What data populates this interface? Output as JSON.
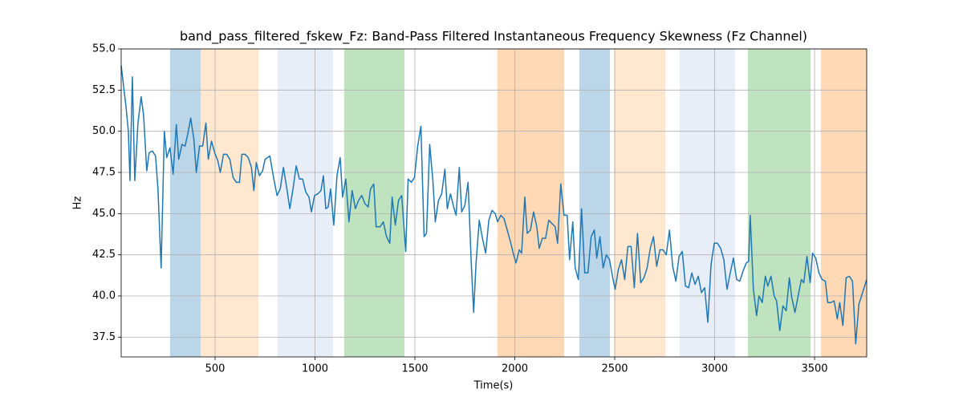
{
  "chart_data": {
    "type": "line",
    "title": "band_pass_filtered_fskew_Fz: Band-Pass Filtered Instantaneous Frequency Skewness (Fz Channel)",
    "xlabel": "Time(s)",
    "ylabel": "Hz",
    "color": "#1f77b4",
    "grid": true,
    "xlim": [
      30,
      3761
    ],
    "ylim": [
      36.3,
      55
    ],
    "xticks": [
      500,
      1000,
      1500,
      2000,
      2500,
      3000,
      3500
    ],
    "yticks": [
      37.5,
      {
        "value": 40,
        "label": "40.0"
      },
      42.5,
      {
        "value": 45,
        "label": "45.0"
      },
      47.5,
      {
        "value": 50,
        "label": "50.0"
      },
      52.5,
      {
        "value": 55,
        "label": "55.0"
      }
    ],
    "spans": [
      {
        "x0": 275,
        "x1": 428,
        "color": "#1f77b4",
        "opacity": 0.3
      },
      {
        "x0": 428,
        "x1": 717,
        "color": "#ffbb78",
        "opacity": 0.35
      },
      {
        "x0": 813,
        "x1": 1090,
        "color": "#aec7e8",
        "opacity": 0.3
      },
      {
        "x0": 1146,
        "x1": 1448,
        "color": "#2ca02c",
        "opacity": 0.3
      },
      {
        "x0": 1913,
        "x1": 2247,
        "color": "#ff7f0e",
        "opacity": 0.3
      },
      {
        "x0": 2323,
        "x1": 2476,
        "color": "#1f77b4",
        "opacity": 0.3
      },
      {
        "x0": 2496,
        "x1": 2753,
        "color": "#ffbb78",
        "opacity": 0.35
      },
      {
        "x0": 2825,
        "x1": 3102,
        "color": "#aec7e8",
        "opacity": 0.3
      },
      {
        "x0": 3166,
        "x1": 3480,
        "color": "#2ca02c",
        "opacity": 0.3
      },
      {
        "x0": 3532,
        "x1": 3761,
        "color": "#ff7f0e",
        "opacity": 0.3
      }
    ],
    "x": [
      30,
      54,
      66,
      74,
      86,
      98,
      114,
      130,
      142,
      158,
      170,
      186,
      202,
      214,
      230,
      246,
      258,
      274,
      290,
      306,
      318,
      334,
      350,
      366,
      378,
      394,
      406,
      422,
      438,
      454,
      466,
      482,
      498,
      514,
      526,
      542,
      558,
      574,
      590,
      606,
      622,
      634,
      650,
      666,
      682,
      694,
      706,
      722,
      738,
      750,
      774,
      794,
      810,
      826,
      842,
      858,
      874,
      890,
      906,
      922,
      938,
      954,
      970,
      982,
      998,
      1014,
      1030,
      1042,
      1054,
      1066,
      1078,
      1094,
      1110,
      1126,
      1138,
      1154,
      1170,
      1186,
      1202,
      1218,
      1234,
      1250,
      1266,
      1278,
      1294,
      1306,
      1326,
      1342,
      1358,
      1374,
      1386,
      1402,
      1418,
      1434,
      1454,
      1466,
      1482,
      1498,
      1514,
      1530,
      1546,
      1558,
      1574,
      1590,
      1602,
      1618,
      1634,
      1650,
      1662,
      1678,
      1694,
      1706,
      1722,
      1734,
      1750,
      1766,
      1782,
      1794,
      1806,
      1822,
      1838,
      1854,
      1870,
      1886,
      1902,
      1914,
      1930,
      1946,
      1962,
      1978,
      1994,
      2006,
      2022,
      2034,
      2050,
      2062,
      2078,
      2094,
      2110,
      2122,
      2138,
      2154,
      2170,
      2186,
      2202,
      2214,
      2230,
      2246,
      2262,
      2274,
      2290,
      2302,
      2318,
      2334,
      2350,
      2366,
      2382,
      2398,
      2410,
      2426,
      2442,
      2458,
      2474,
      2490,
      2502,
      2518,
      2534,
      2550,
      2566,
      2582,
      2598,
      2614,
      2630,
      2646,
      2662,
      2678,
      2694,
      2710,
      2726,
      2742,
      2758,
      2774,
      2790,
      2806,
      2822,
      2838,
      2854,
      2870,
      2886,
      2902,
      2918,
      2934,
      2950,
      2966,
      2982,
      2998,
      3014,
      3030,
      3046,
      3062,
      3078,
      3094,
      3110,
      3126,
      3142,
      3158,
      3170,
      3178,
      3194,
      3210,
      3222,
      3238,
      3254,
      3266,
      3282,
      3298,
      3310,
      3326,
      3342,
      3358,
      3374,
      3386,
      3402,
      3418,
      3434,
      3446,
      3462,
      3478,
      3490,
      3506,
      3522,
      3538,
      3554,
      3566,
      3582,
      3598,
      3614,
      3626,
      3642,
      3658,
      3674,
      3690,
      3706,
      3722,
      3761
    ],
    "values": [
      54.0,
      51.5,
      50.0,
      47.0,
      53.3,
      47.0,
      50.5,
      52.1,
      51.0,
      47.6,
      48.7,
      48.8,
      48.5,
      46.5,
      41.7,
      50.0,
      48.4,
      49.0,
      47.4,
      50.4,
      48.3,
      49.2,
      49.1,
      50.0,
      50.8,
      49.5,
      47.5,
      49.1,
      49.1,
      50.5,
      48.3,
      49.4,
      48.7,
      48.2,
      47.5,
      48.6,
      48.6,
      48.3,
      47.2,
      46.9,
      46.9,
      48.6,
      48.6,
      48.4,
      47.8,
      46.4,
      48.1,
      47.3,
      47.6,
      48.3,
      48.5,
      47.1,
      46.1,
      46.5,
      47.8,
      46.6,
      45.3,
      46.5,
      47.9,
      47.1,
      47.1,
      46.3,
      46.0,
      45.1,
      46.1,
      46.2,
      46.4,
      47.3,
      45.3,
      45.4,
      46.5,
      44.3,
      47.3,
      48.4,
      46.0,
      47.1,
      44.5,
      46.4,
      45.3,
      45.8,
      46.1,
      45.6,
      45.4,
      46.5,
      46.8,
      44.2,
      44.2,
      44.5,
      43.6,
      43.2,
      46.0,
      44.3,
      45.8,
      46.1,
      42.7,
      47.1,
      46.9,
      47.2,
      49.1,
      50.3,
      43.6,
      43.8,
      49.2,
      47.0,
      44.5,
      45.8,
      46.2,
      47.7,
      45.3,
      46.2,
      45.4,
      44.9,
      47.8,
      45.1,
      45.5,
      46.9,
      42.0,
      39.0,
      42.0,
      44.6,
      43.5,
      42.6,
      44.6,
      45.2,
      45.0,
      44.5,
      44.9,
      44.7,
      44.0,
      43.3,
      42.5,
      42.0,
      42.8,
      42.6,
      46.0,
      43.8,
      44.0,
      45.1,
      44.2,
      42.9,
      43.5,
      43.5,
      44.6,
      44.4,
      44.2,
      43.2,
      46.8,
      44.9,
      44.9,
      42.2,
      44.5,
      41.7,
      41.0,
      45.3,
      41.4,
      41.4,
      43.6,
      44.0,
      42.3,
      43.6,
      41.7,
      42.5,
      42.2,
      41.1,
      40.4,
      41.6,
      42.2,
      41.0,
      43.0,
      43.0,
      40.5,
      43.8,
      40.8,
      41.1,
      41.7,
      42.9,
      43.6,
      41.8,
      42.8,
      42.8,
      42.5,
      44.0,
      41.8,
      40.9,
      42.4,
      42.7,
      40.6,
      40.5,
      41.4,
      40.7,
      41.2,
      40.2,
      40.5,
      38.4,
      41.9,
      43.2,
      43.2,
      42.9,
      42.2,
      40.4,
      41.4,
      42.3,
      41.0,
      40.9,
      41.5,
      42.0,
      42.1,
      44.9,
      40.4,
      38.8,
      40.0,
      39.6,
      41.2,
      40.6,
      41.2,
      40.0,
      39.7,
      37.9,
      39.4,
      39.1,
      41.1,
      39.9,
      39.0,
      40.0,
      41.0,
      40.8,
      42.4,
      40.8,
      42.6,
      42.3,
      41.4,
      41.0,
      40.9,
      39.6,
      39.6,
      39.7,
      38.6,
      39.6,
      38.2,
      41.1,
      41.2,
      40.9,
      37.1,
      39.5,
      41.0
    ]
  }
}
